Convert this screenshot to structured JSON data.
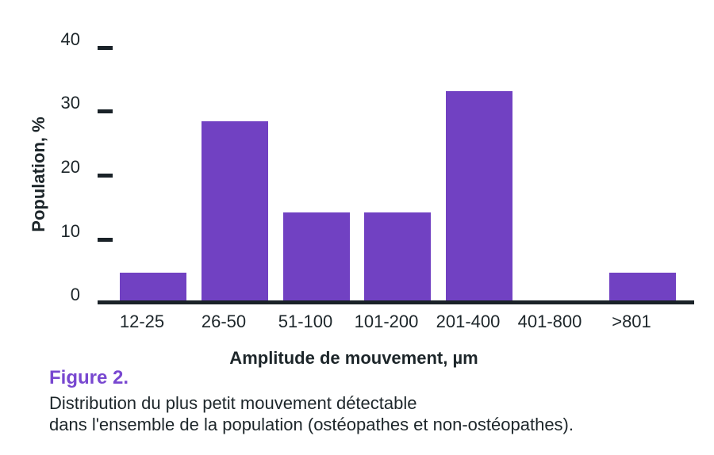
{
  "figure": {
    "label": "Figure 2.",
    "caption_lines": [
      "Distribution du plus petit mouvement détectable",
      "dans l'ensemble de la population (ostéopathes et non-ostéopathes)."
    ]
  },
  "chart_data": {
    "type": "bar",
    "categories": [
      "12-25",
      "26-50",
      "51-100",
      "101-200",
      "201-400",
      "401-800",
      ">801"
    ],
    "values": [
      4.8,
      28.6,
      14.3,
      14.3,
      33.3,
      0,
      4.8
    ],
    "title": "",
    "xlabel": "Amplitude de mouvement, µm",
    "ylabel": "Population, %",
    "ylim": [
      0,
      40
    ],
    "yticks": [
      0,
      10,
      20,
      30,
      40
    ],
    "grid": false,
    "legend": null,
    "bar_color": "#7141c2",
    "axis_color": "#1a2228",
    "text_color": "#1d262a",
    "figure_label_color": "#7847d0"
  }
}
